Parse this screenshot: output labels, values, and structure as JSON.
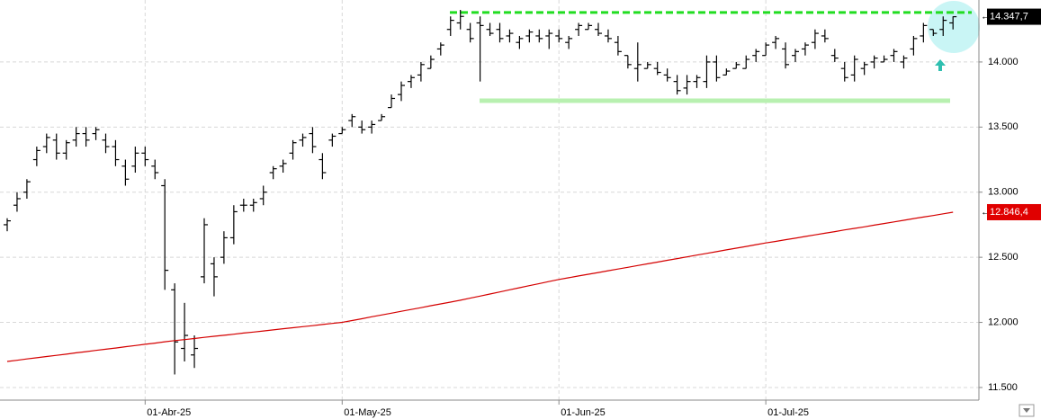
{
  "chart_data": {
    "type": "ohlc",
    "categories": [
      null,
      null,
      null,
      null,
      null,
      null,
      null,
      null,
      null,
      null,
      null,
      null,
      null,
      null,
      "01-Abr-25",
      null,
      null,
      null,
      null,
      null,
      null,
      null,
      null,
      null,
      null,
      null,
      null,
      null,
      null,
      null,
      null,
      null,
      null,
      null,
      "01-May-25",
      null,
      null,
      null,
      null,
      null,
      null,
      null,
      null,
      null,
      null,
      null,
      null,
      null,
      null,
      null,
      null,
      null,
      null,
      null,
      null,
      null,
      "01-Jun-25",
      null,
      null,
      null,
      null,
      null,
      null,
      null,
      null,
      null,
      null,
      null,
      null,
      null,
      null,
      null,
      null,
      null,
      null,
      null,
      null,
      "01-Jul-25",
      null,
      null,
      null,
      null,
      null,
      null,
      null,
      null,
      null,
      null,
      null,
      null,
      null,
      null,
      null,
      null,
      null,
      null,
      null
    ],
    "series": [
      {
        "type": "ohlc",
        "color": "#000000",
        "open": [
          12750,
          12900,
          13000,
          13250,
          13350,
          13400,
          13300,
          13400,
          13450,
          13450,
          13400,
          13350,
          13200,
          13200,
          13300,
          13200,
          13050,
          12250,
          11800,
          11750,
          12350,
          12450,
          12500,
          12650,
          12900,
          12900,
          12950,
          13150,
          13200,
          13300,
          13400,
          13450,
          13250,
          13400,
          13450,
          13550,
          13500,
          13500,
          13550,
          13650,
          13750,
          13850,
          13900,
          13950,
          14100,
          14250,
          14300,
          14250,
          14300,
          14250,
          14250,
          14200,
          14150,
          14200,
          14200,
          14200,
          14200,
          14150,
          14250,
          14250,
          14250,
          14200,
          14150,
          14050,
          13950,
          13950,
          13950,
          13900,
          13850,
          13800,
          13850,
          13850,
          14000,
          13900,
          13950,
          13950,
          14050,
          14050,
          14150,
          14100,
          14050,
          14100,
          14150,
          14200,
          14050,
          13950,
          13900,
          13950,
          14000,
          14000,
          14050,
          14000,
          14100,
          14200,
          14250,
          14250,
          14300
        ],
        "high": [
          12800,
          13000,
          13100,
          13350,
          13450,
          13450,
          13400,
          13500,
          13500,
          13500,
          13450,
          13400,
          13250,
          13350,
          13350,
          13250,
          13100,
          12300,
          12150,
          11900,
          12800,
          12500,
          12700,
          12900,
          12950,
          12950,
          13050,
          13200,
          13250,
          13400,
          13450,
          13500,
          13300,
          13450,
          13500,
          13600,
          13550,
          13550,
          13600,
          13750,
          13850,
          13900,
          14000,
          14050,
          14150,
          14350,
          14400,
          14300,
          14350,
          14300,
          14300,
          14250,
          14200,
          14250,
          14250,
          14250,
          14250,
          14200,
          14300,
          14300,
          14300,
          14250,
          14200,
          14050,
          14150,
          14000,
          14000,
          13950,
          13900,
          13900,
          13900,
          14050,
          14050,
          13950,
          14000,
          14050,
          14100,
          14150,
          14200,
          14150,
          14100,
          14150,
          14250,
          14250,
          14100,
          14000,
          14050,
          14000,
          14050,
          14050,
          14100,
          14050,
          14200,
          14300,
          14250,
          14350,
          14350
        ],
        "low": [
          12700,
          12850,
          12950,
          13200,
          13300,
          13250,
          13250,
          13350,
          13350,
          13400,
          13300,
          13200,
          13050,
          13150,
          13200,
          13100,
          12250,
          11600,
          11700,
          11650,
          12300,
          12200,
          12450,
          12600,
          12850,
          12850,
          12900,
          13100,
          13150,
          13250,
          13350,
          13300,
          13100,
          13350,
          13450,
          13500,
          13450,
          13450,
          13550,
          13650,
          13700,
          13800,
          13850,
          13950,
          14050,
          14200,
          14250,
          14150,
          13850,
          14200,
          14150,
          14150,
          14100,
          14150,
          14150,
          14100,
          14150,
          14100,
          14200,
          14250,
          14200,
          14150,
          14050,
          13950,
          13850,
          13950,
          13900,
          13850,
          13750,
          13750,
          13800,
          13800,
          13850,
          13900,
          13950,
          13950,
          14000,
          14050,
          14100,
          13950,
          14000,
          14050,
          14100,
          14150,
          14000,
          13850,
          13850,
          13900,
          13950,
          14000,
          14000,
          13950,
          14050,
          14150,
          14200,
          14200,
          14250
        ],
        "close": [
          12780,
          12950,
          13080,
          13320,
          13420,
          13300,
          13380,
          13450,
          13400,
          13480,
          13350,
          13250,
          13100,
          13300,
          13250,
          13150,
          12400,
          11850,
          11900,
          11800,
          12750,
          12350,
          12650,
          12850,
          12900,
          12920,
          13000,
          13180,
          13220,
          13380,
          13420,
          13350,
          13150,
          13430,
          13480,
          13580,
          13480,
          13520,
          13580,
          13720,
          13820,
          13880,
          13980,
          14020,
          14130,
          14320,
          14350,
          14180,
          14280,
          14220,
          14180,
          14220,
          14180,
          14230,
          14180,
          14220,
          14180,
          14180,
          14280,
          14280,
          14220,
          14180,
          14080,
          13980,
          13980,
          13980,
          13920,
          13880,
          13780,
          13850,
          13880,
          14000,
          13880,
          13930,
          13980,
          14020,
          14080,
          14130,
          14180,
          13980,
          14080,
          14130,
          14220,
          14180,
          14030,
          13880,
          14020,
          13980,
          14030,
          14020,
          14080,
          14030,
          14180,
          14280,
          14220,
          14320,
          14347.7
        ],
        "last_value_label": "14.347,7",
        "label_color": "#000000"
      },
      {
        "type": "line",
        "color": "#d40000",
        "values": [
          11700,
          11709,
          11719,
          11728,
          11738,
          11747,
          11756,
          11766,
          11775,
          11785,
          11794,
          11803,
          11813,
          11822,
          11832,
          11841,
          11851,
          11860,
          11868,
          11876,
          11885,
          11893,
          11901,
          11909,
          11918,
          11926,
          11934,
          11942,
          11951,
          11959,
          11967,
          11975,
          11984,
          11992,
          12000,
          12014,
          12028,
          12043,
          12057,
          12071,
          12085,
          12099,
          12113,
          12128,
          12142,
          12156,
          12170,
          12186,
          12202,
          12218,
          12234,
          12250,
          12266,
          12282,
          12298,
          12314,
          12330,
          12343,
          12357,
          12370,
          12383,
          12397,
          12410,
          12423,
          12437,
          12450,
          12463,
          12477,
          12490,
          12503,
          12517,
          12530,
          12543,
          12557,
          12570,
          12583,
          12597,
          12610,
          12622,
          12635,
          12647,
          12660,
          12672,
          12685,
          12697,
          12710,
          12722,
          12734,
          12747,
          12759,
          12772,
          12784,
          12797,
          12809,
          12821,
          12834,
          12846.4
        ],
        "last_value_label": "12.846,4",
        "label_color": "#e00000"
      }
    ],
    "ylim": [
      11403,
      14476
    ],
    "yticks": [
      {
        "value": 11500,
        "label": "11.500"
      },
      {
        "value": 12000,
        "label": "12.000"
      },
      {
        "value": 12500,
        "label": "12.500"
      },
      {
        "value": 13000,
        "label": "13.000"
      },
      {
        "value": 13500,
        "label": "13.500"
      },
      {
        "value": 14000,
        "label": "14.000"
      }
    ],
    "grid": true,
    "hlines": [
      {
        "value": 14380,
        "color": "#22dd22",
        "style": "dashed"
      },
      {
        "value": 13703,
        "color": "#b8f0b0",
        "style": "solid"
      }
    ]
  }
}
